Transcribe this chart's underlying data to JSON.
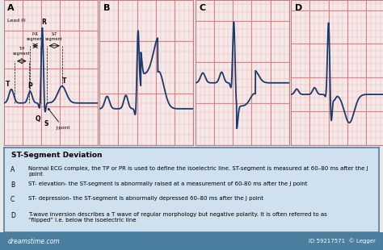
{
  "bg_color": "#f5e8e8",
  "grid_minor_color": "#f0b8b8",
  "grid_major_color": "#e08080",
  "ecg_color": "#1a3a6b",
  "ecg_linewidth": 1.3,
  "panel_labels": [
    "A",
    "B",
    "C",
    "D"
  ],
  "lead_label": "Lead III",
  "text_box_bg": "#cfe0ee",
  "text_box_border": "#5080a0",
  "footer_bg": "#4a7fa0",
  "footer_text_color": "white",
  "title": "ST-Segment Deviation",
  "desc_A": "Normal ECG complex, the TP or PR is used to define the isoelectric line. ST-segment is measured at 60–80 ms after the J point",
  "desc_B": "ST- elevation- the ST-segment is abnormally raised at a measurement of 60-80 ms after the J point",
  "desc_C": "ST- depression- the ST-segment is abnormally depressed 60–80 ms after the J point",
  "desc_D": "T-wave inversion describes a T wave of regular morphology but negative polarity. It is often referred to as\n“flipped” i.e. below the isoelectric line",
  "ecg_panels": {
    "A": {
      "ymin": -0.55,
      "ymax": 1.35
    },
    "B": {
      "ymin": -0.35,
      "ymax": 1.05
    },
    "C": {
      "ymin": -0.75,
      "ymax": 1.0
    },
    "D": {
      "ymin": -0.75,
      "ymax": 1.4
    }
  }
}
